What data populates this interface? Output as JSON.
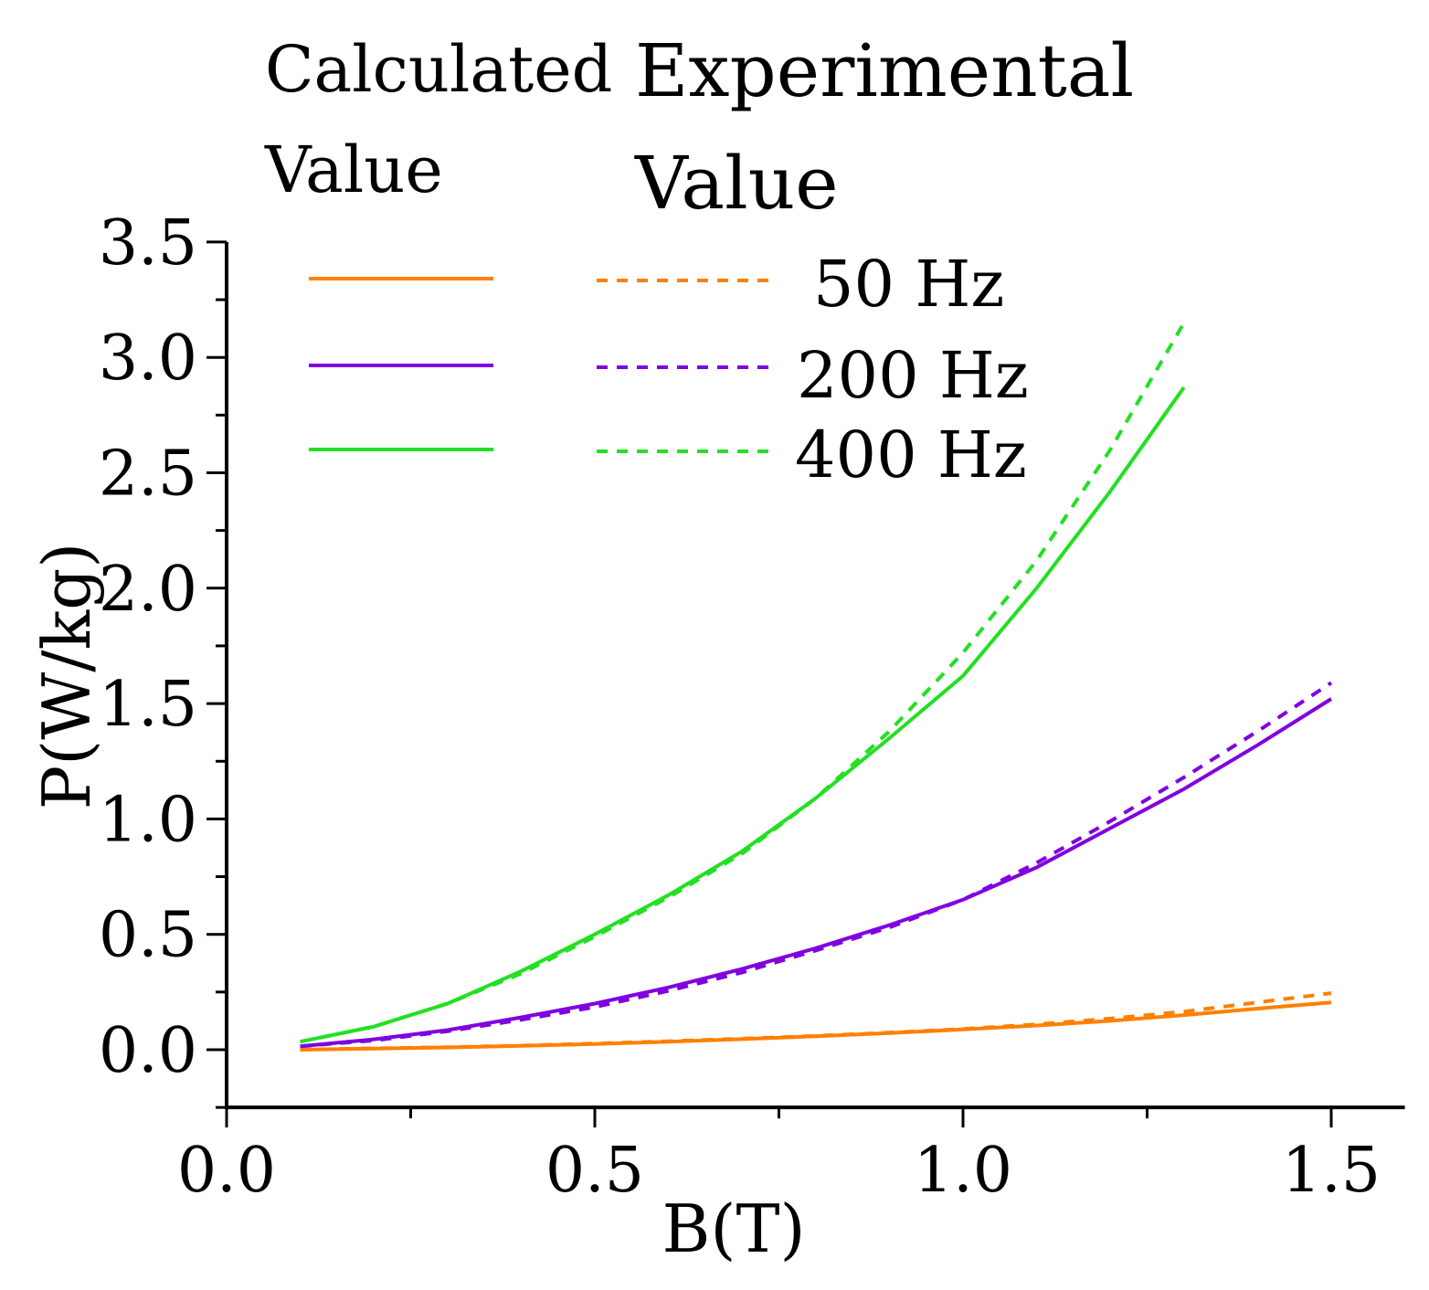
{
  "chart_data": {
    "type": "line",
    "xlabel": "B(T)",
    "ylabel": "P(W/kg)",
    "xlim": [
      0,
      1.6
    ],
    "ylim": [
      -0.25,
      3.5
    ],
    "xticks": [
      "0.0",
      "0.5",
      "1.0",
      "1.5"
    ],
    "xtick_values": [
      0,
      0.5,
      1.0,
      1.5
    ],
    "yticks": [
      "0.0",
      "0.5",
      "1.0",
      "1.5",
      "2.0",
      "2.5",
      "3.0",
      "3.5"
    ],
    "ytick_values": [
      0,
      0.5,
      1.0,
      1.5,
      2.0,
      2.5,
      3.0,
      3.5
    ],
    "grid": false,
    "legend": {
      "placement": "top-left",
      "calculated_header": [
        "Calculated",
        "Value"
      ],
      "experimental_header": [
        "Experimental",
        "Value"
      ],
      "entries": [
        "50 Hz",
        "200 Hz",
        "400 Hz"
      ]
    },
    "series": [
      {
        "name": "50 Hz calculated",
        "freq": "50 Hz",
        "kind": "calculated",
        "color": "#ff8000",
        "x": [
          0.1,
          0.2,
          0.3,
          0.4,
          0.5,
          0.6,
          0.7,
          0.8,
          0.9,
          1.0,
          1.1,
          1.2,
          1.3,
          1.4,
          1.5
        ],
        "y": [
          0.0,
          0.005,
          0.01,
          0.017,
          0.025,
          0.035,
          0.046,
          0.058,
          0.072,
          0.088,
          0.105,
          0.125,
          0.15,
          0.178,
          0.205
        ]
      },
      {
        "name": "50 Hz experimental",
        "freq": "50 Hz",
        "kind": "experimental",
        "color": "#ff8000",
        "x": [
          0.1,
          0.2,
          0.3,
          0.4,
          0.5,
          0.6,
          0.7,
          0.8,
          0.9,
          1.0,
          1.1,
          1.2,
          1.3,
          1.4,
          1.5
        ],
        "y": [
          0.0,
          0.006,
          0.011,
          0.018,
          0.027,
          0.037,
          0.048,
          0.06,
          0.074,
          0.09,
          0.11,
          0.135,
          0.165,
          0.205,
          0.245
        ]
      },
      {
        "name": "200 Hz calculated",
        "freq": "200 Hz",
        "kind": "calculated",
        "color": "#8000e0",
        "x": [
          0.1,
          0.2,
          0.3,
          0.4,
          0.5,
          0.6,
          0.7,
          0.8,
          0.9,
          1.0,
          1.1,
          1.2,
          1.3,
          1.4,
          1.5
        ],
        "y": [
          0.015,
          0.045,
          0.085,
          0.14,
          0.2,
          0.27,
          0.35,
          0.44,
          0.54,
          0.65,
          0.79,
          0.96,
          1.13,
          1.32,
          1.52
        ]
      },
      {
        "name": "200 Hz experimental",
        "freq": "200 Hz",
        "kind": "experimental",
        "color": "#8000e0",
        "x": [
          0.1,
          0.2,
          0.3,
          0.4,
          0.5,
          0.6,
          0.7,
          0.8,
          0.9,
          1.0,
          1.1,
          1.2,
          1.3,
          1.4,
          1.5
        ],
        "y": [
          0.015,
          0.04,
          0.08,
          0.13,
          0.185,
          0.255,
          0.335,
          0.43,
          0.53,
          0.65,
          0.81,
          0.99,
          1.18,
          1.38,
          1.59
        ]
      },
      {
        "name": "400 Hz calculated",
        "freq": "400 Hz",
        "kind": "calculated",
        "color": "#22e022",
        "x": [
          0.1,
          0.2,
          0.3,
          0.4,
          0.5,
          0.6,
          0.7,
          0.8,
          0.9,
          1.0,
          1.1,
          1.2,
          1.3
        ],
        "y": [
          0.035,
          0.1,
          0.2,
          0.34,
          0.5,
          0.67,
          0.86,
          1.09,
          1.35,
          1.62,
          2.0,
          2.42,
          2.87
        ]
      },
      {
        "name": "400 Hz experimental",
        "freq": "400 Hz",
        "kind": "experimental",
        "color": "#22e022",
        "x": [
          0.1,
          0.2,
          0.3,
          0.4,
          0.5,
          0.6,
          0.7,
          0.8,
          0.9,
          1.0,
          1.1,
          1.2,
          1.3
        ],
        "y": [
          0.035,
          0.1,
          0.2,
          0.33,
          0.49,
          0.66,
          0.85,
          1.09,
          1.38,
          1.72,
          2.12,
          2.6,
          3.15
        ]
      }
    ]
  }
}
